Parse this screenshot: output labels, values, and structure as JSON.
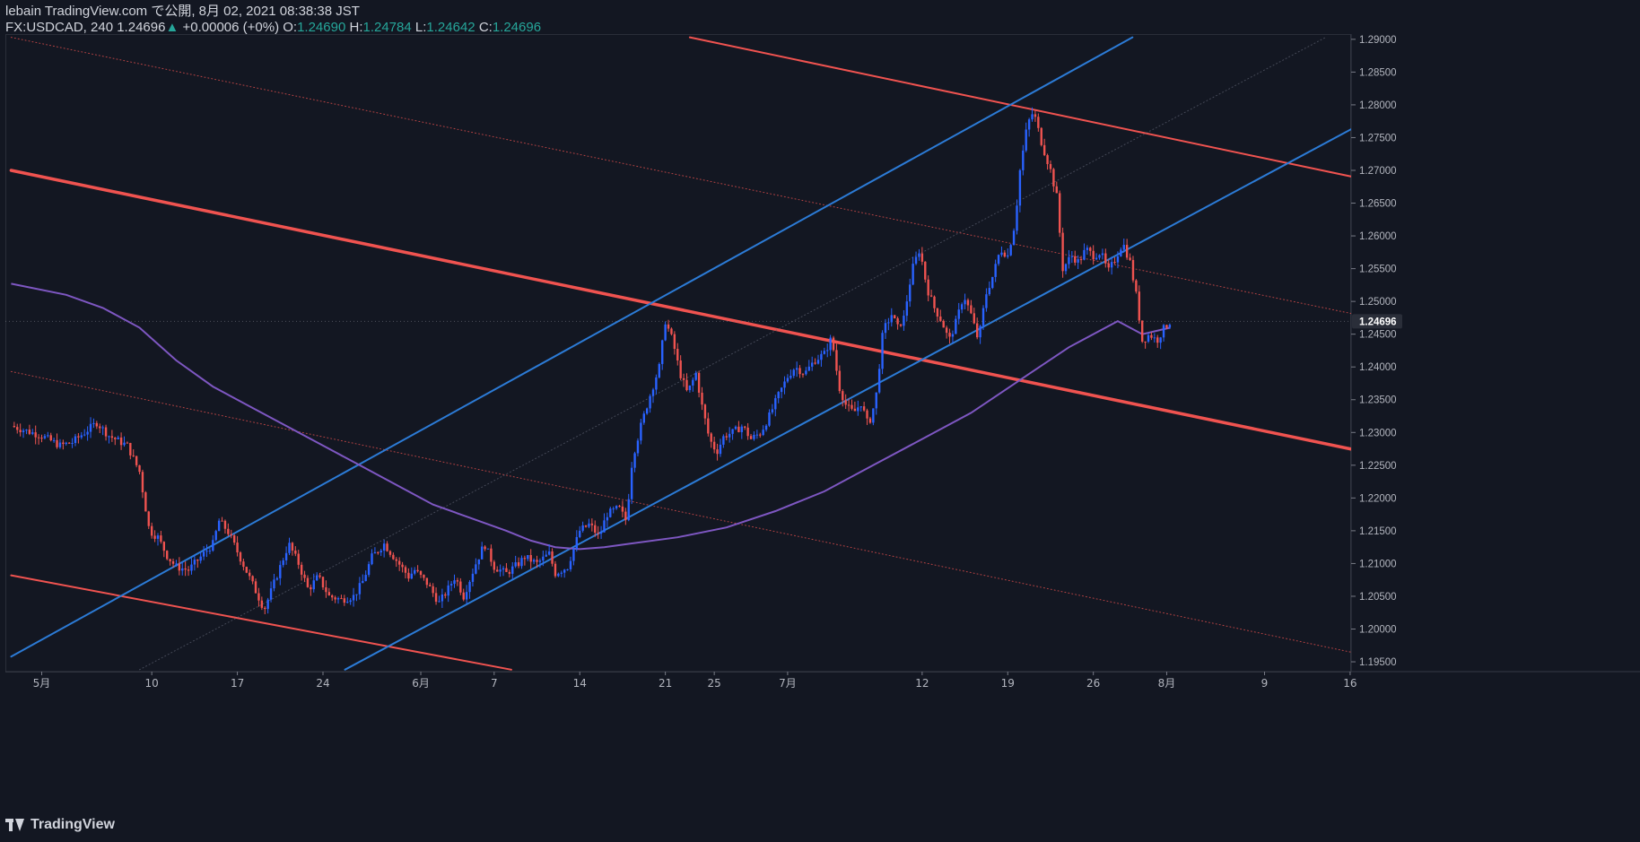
{
  "header": {
    "line1": "lebain TradingView.com で公開, 8月 02, 2021 08:38:38 JST",
    "symbol": "FX:USDCAD, 240",
    "last": "1.24696",
    "arrow": "▲",
    "change": "+0.00006 (+0%)",
    "o_label": "O:",
    "o_value": "1.24690",
    "h_label": "H:",
    "h_value": "1.24784",
    "l_label": "L:",
    "l_value": "1.24642",
    "c_label": "C:",
    "c_value": "1.24696"
  },
  "footer": {
    "brand": "TradingView"
  },
  "colors": {
    "background": "#131722",
    "up": "#2962ff",
    "down": "#ef5350",
    "trend_red": "#f05350",
    "trend_blue": "#2c7bd6",
    "ma": "#7e57c2",
    "price_label_bg": "#2a2e39"
  },
  "chart_data": {
    "type": "candlestick",
    "symbol": "FX:USDCAD",
    "interval": "240",
    "current_price": "1.24696",
    "ylim": [
      1.1935,
      1.2908
    ],
    "y_ticks": [
      "1.29000",
      "1.28500",
      "1.28000",
      "1.27500",
      "1.27000",
      "1.26500",
      "1.26000",
      "1.25500",
      "1.25000",
      "1.24500",
      "1.24000",
      "1.23500",
      "1.23000",
      "1.22500",
      "1.22000",
      "1.21500",
      "1.21000",
      "1.20500",
      "1.20000",
      "1.19500"
    ],
    "x_ticks": [
      {
        "label": "5月",
        "day": 0
      },
      {
        "label": "10",
        "day": 9
      },
      {
        "label": "17",
        "day": 16
      },
      {
        "label": "24",
        "day": 23
      },
      {
        "label": "6月",
        "day": 31
      },
      {
        "label": "7",
        "day": 37
      },
      {
        "label": "14",
        "day": 44
      },
      {
        "label": "21",
        "day": 51
      },
      {
        "label": "25",
        "day": 55
      },
      {
        "label": "7月",
        "day": 61
      },
      {
        "label": "12",
        "day": 72
      },
      {
        "label": "19",
        "day": 79
      },
      {
        "label": "26",
        "day": 86
      },
      {
        "label": "8月",
        "day": 92
      },
      {
        "label": "9",
        "day": 100
      },
      {
        "label": "16",
        "day": 107
      }
    ],
    "close_path": [
      [
        -2.5,
        1.231
      ],
      [
        0,
        1.2295
      ],
      [
        1.5,
        1.228
      ],
      [
        2.5,
        1.2285
      ],
      [
        3.5,
        1.23
      ],
      [
        4.5,
        1.2315
      ],
      [
        5.5,
        1.2295
      ],
      [
        7,
        1.228
      ],
      [
        8,
        1.224
      ],
      [
        8.8,
        1.215
      ],
      [
        9.5,
        1.214
      ],
      [
        10.3,
        1.211
      ],
      [
        11,
        1.2095
      ],
      [
        12,
        1.209
      ],
      [
        13,
        1.211
      ],
      [
        14,
        1.213
      ],
      [
        14.5,
        1.2165
      ],
      [
        15.2,
        1.215
      ],
      [
        16.2,
        1.211
      ],
      [
        17.2,
        1.207
      ],
      [
        18.2,
        1.203
      ],
      [
        19.2,
        1.208
      ],
      [
        20.2,
        1.213
      ],
      [
        21,
        1.21
      ],
      [
        21.8,
        1.206
      ],
      [
        22.6,
        1.208
      ],
      [
        23.5,
        1.205
      ],
      [
        24.5,
        1.2045
      ],
      [
        25.5,
        1.205
      ],
      [
        26.2,
        1.207
      ],
      [
        27,
        1.211
      ],
      [
        28,
        1.213
      ],
      [
        29,
        1.2105
      ],
      [
        30,
        1.208
      ],
      [
        30.5,
        1.209
      ],
      [
        31.5,
        1.207
      ],
      [
        32.5,
        1.204
      ],
      [
        33.2,
        1.206
      ],
      [
        33.8,
        1.208
      ],
      [
        34.5,
        1.205
      ],
      [
        35.5,
        1.21
      ],
      [
        36.2,
        1.213
      ],
      [
        37,
        1.2095
      ],
      [
        38,
        1.2085
      ],
      [
        39,
        1.21
      ],
      [
        39.5,
        1.211
      ],
      [
        40.5,
        1.21
      ],
      [
        41.5,
        1.2115
      ],
      [
        42,
        1.2085
      ],
      [
        43,
        1.2095
      ],
      [
        44,
        1.215
      ],
      [
        44.8,
        1.216
      ],
      [
        45.6,
        1.214
      ],
      [
        46.2,
        1.2175
      ],
      [
        47.2,
        1.2185
      ],
      [
        47.8,
        1.2165
      ],
      [
        48.3,
        1.226
      ],
      [
        49,
        1.231
      ],
      [
        49.8,
        1.236
      ],
      [
        50.5,
        1.24
      ],
      [
        51,
        1.247
      ],
      [
        51.6,
        1.244
      ],
      [
        52.2,
        1.239
      ],
      [
        52.8,
        1.236
      ],
      [
        53.5,
        1.239
      ],
      [
        54,
        1.234
      ],
      [
        54.6,
        1.229
      ],
      [
        55.2,
        1.227
      ],
      [
        55.8,
        1.2295
      ],
      [
        56.5,
        1.23
      ],
      [
        57.3,
        1.231
      ],
      [
        58,
        1.229
      ],
      [
        58.8,
        1.23
      ],
      [
        59.5,
        1.2325
      ],
      [
        60.2,
        1.2355
      ],
      [
        61,
        1.2385
      ],
      [
        61.6,
        1.24
      ],
      [
        62.4,
        1.239
      ],
      [
        63.2,
        1.241
      ],
      [
        64,
        1.242
      ],
      [
        64.6,
        1.2445
      ],
      [
        65.2,
        1.237
      ],
      [
        65.8,
        1.234
      ],
      [
        66.4,
        1.233
      ],
      [
        67,
        1.2345
      ],
      [
        67.6,
        1.231
      ],
      [
        68.2,
        1.235
      ],
      [
        68.8,
        1.2455
      ],
      [
        69.5,
        1.248
      ],
      [
        70,
        1.246
      ],
      [
        70.5,
        1.2475
      ],
      [
        71.2,
        1.255
      ],
      [
        71.8,
        1.258
      ],
      [
        72.4,
        1.252
      ],
      [
        73,
        1.249
      ],
      [
        73.6,
        1.247
      ],
      [
        74.2,
        1.244
      ],
      [
        74.8,
        1.247
      ],
      [
        75.4,
        1.251
      ],
      [
        76,
        1.248
      ],
      [
        76.6,
        1.244
      ],
      [
        77.2,
        1.251
      ],
      [
        77.8,
        1.254
      ],
      [
        78.4,
        1.258
      ],
      [
        79,
        1.257
      ],
      [
        79.6,
        1.262
      ],
      [
        80,
        1.27
      ],
      [
        80.6,
        1.277
      ],
      [
        81.1,
        1.279
      ],
      [
        81.8,
        1.274
      ],
      [
        82.5,
        1.27
      ],
      [
        83,
        1.266
      ],
      [
        83.5,
        1.255
      ],
      [
        84.2,
        1.257
      ],
      [
        84.8,
        1.256
      ],
      [
        85.4,
        1.258
      ],
      [
        86,
        1.257
      ],
      [
        86.6,
        1.2575
      ],
      [
        87.2,
        1.2545
      ],
      [
        87.8,
        1.2565
      ],
      [
        88.4,
        1.259
      ],
      [
        89,
        1.256
      ],
      [
        89.5,
        1.251
      ],
      [
        90,
        1.244
      ],
      [
        90.6,
        1.245
      ],
      [
        91.2,
        1.244
      ],
      [
        91.8,
        1.246
      ],
      [
        92.3,
        1.24696
      ]
    ],
    "moving_average": [
      [
        -2.5,
        1.2527
      ],
      [
        2,
        1.251
      ],
      [
        5,
        1.249
      ],
      [
        8,
        1.246
      ],
      [
        11,
        1.241
      ],
      [
        14,
        1.237
      ],
      [
        17,
        1.234
      ],
      [
        20,
        1.231
      ],
      [
        23,
        1.228
      ],
      [
        26,
        1.225
      ],
      [
        29,
        1.222
      ],
      [
        32,
        1.219
      ],
      [
        35,
        1.217
      ],
      [
        38,
        1.215
      ],
      [
        40,
        1.2135
      ],
      [
        42,
        1.2125
      ],
      [
        44,
        1.2122
      ],
      [
        46,
        1.2125
      ],
      [
        48,
        1.213
      ],
      [
        52,
        1.214
      ],
      [
        56,
        1.2155
      ],
      [
        60,
        1.218
      ],
      [
        64,
        1.221
      ],
      [
        68,
        1.225
      ],
      [
        72,
        1.229
      ],
      [
        76,
        1.233
      ],
      [
        80,
        1.238
      ],
      [
        84,
        1.243
      ],
      [
        88,
        1.247
      ],
      [
        90,
        1.245
      ],
      [
        92.3,
        1.246
      ]
    ],
    "trend_lines": [
      {
        "color": "red",
        "width": 3.5,
        "style": "solid",
        "from": [
          -2.5,
          1.27
        ],
        "to": [
          107.5,
          1.2273
        ]
      },
      {
        "color": "red",
        "width": 2,
        "style": "solid",
        "from": [
          53,
          1.2903
        ],
        "to": [
          107.5,
          1.2689
        ]
      },
      {
        "color": "red",
        "width": 2,
        "style": "solid",
        "from": [
          -2.5,
          1.2082
        ],
        "to": [
          38.4,
          1.1938
        ]
      },
      {
        "color": "red",
        "width": 1,
        "style": "dotted",
        "from": [
          -2.5,
          1.2903
        ],
        "to": [
          107.5,
          1.248
        ]
      },
      {
        "color": "red",
        "width": 1,
        "style": "dotted",
        "from": [
          -2.5,
          1.2393
        ],
        "to": [
          107.5,
          1.1963
        ]
      },
      {
        "color": "blue",
        "width": 2,
        "style": "solid",
        "from": [
          -2.5,
          1.1958
        ],
        "to": [
          89.2,
          1.2903
        ]
      },
      {
        "color": "blue",
        "width": 2,
        "style": "solid",
        "from": [
          24.8,
          1.1938
        ],
        "to": [
          107.5,
          1.2767
        ]
      },
      {
        "color": "grey",
        "width": 1,
        "style": "dotted",
        "from": [
          8,
          1.1938
        ],
        "to": [
          105,
          1.2903
        ]
      }
    ]
  }
}
